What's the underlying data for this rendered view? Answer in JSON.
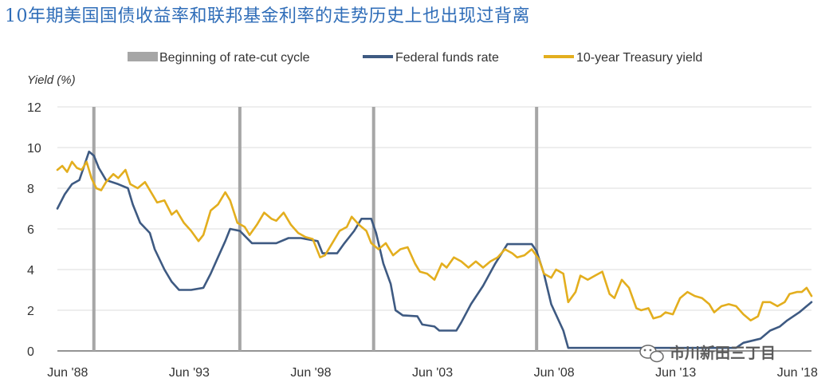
{
  "headline": "10年期美国国债收益率和联邦基金利率的走势历史上也出现过背离",
  "watermark": {
    "text": "市川新田三丁目",
    "icon": "wechat-icon"
  },
  "colors": {
    "fed_funds": "#3e5a82",
    "treasury_10y": "#e3ae1e",
    "cut_cycle": "#a6a6a6",
    "grid": "#dcdcdc"
  },
  "chart_data": {
    "type": "line",
    "title": "",
    "xlabel": "",
    "ylabel": "Yield (%)",
    "ylim": [
      0,
      12
    ],
    "xlim": [
      1988.0,
      2019.0
    ],
    "y_ticks": [
      0,
      2,
      4,
      6,
      8,
      10,
      12
    ],
    "x_ticks": [
      {
        "value": 1988.42,
        "label": "Jun '88"
      },
      {
        "value": 1993.42,
        "label": "Jun '93"
      },
      {
        "value": 1998.42,
        "label": "Jun '98"
      },
      {
        "value": 2003.42,
        "label": "Jun '03"
      },
      {
        "value": 2008.42,
        "label": "Jun '08"
      },
      {
        "value": 2013.42,
        "label": "Jun '13"
      },
      {
        "value": 2018.42,
        "label": "Jun '18"
      }
    ],
    "grid": true,
    "legend": {
      "position": "top",
      "entries": [
        "Beginning of rate-cut cycle",
        "Federal funds rate",
        "10-year Treasury yield"
      ]
    },
    "rate_cut_starts": [
      1989.5,
      1995.5,
      2001.0,
      2007.7
    ],
    "series": [
      {
        "name": "Federal funds rate",
        "points": [
          [
            1988.0,
            7.0
          ],
          [
            1988.3,
            7.7
          ],
          [
            1988.6,
            8.2
          ],
          [
            1988.9,
            8.4
          ],
          [
            1989.1,
            9.1
          ],
          [
            1989.3,
            9.8
          ],
          [
            1989.5,
            9.6
          ],
          [
            1989.7,
            9.0
          ],
          [
            1990.0,
            8.4
          ],
          [
            1990.5,
            8.2
          ],
          [
            1990.9,
            8.0
          ],
          [
            1991.1,
            7.2
          ],
          [
            1991.4,
            6.3
          ],
          [
            1991.8,
            5.8
          ],
          [
            1992.0,
            5.0
          ],
          [
            1992.4,
            4.0
          ],
          [
            1992.7,
            3.4
          ],
          [
            1993.0,
            3.0
          ],
          [
            1993.5,
            3.0
          ],
          [
            1994.0,
            3.1
          ],
          [
            1994.3,
            3.8
          ],
          [
            1994.6,
            4.6
          ],
          [
            1994.9,
            5.4
          ],
          [
            1995.1,
            6.0
          ],
          [
            1995.5,
            5.9
          ],
          [
            1996.0,
            5.3
          ],
          [
            1996.5,
            5.3
          ],
          [
            1997.0,
            5.3
          ],
          [
            1997.5,
            5.55
          ],
          [
            1998.0,
            5.55
          ],
          [
            1998.7,
            5.4
          ],
          [
            1998.9,
            4.8
          ],
          [
            1999.5,
            4.8
          ],
          [
            1999.8,
            5.3
          ],
          [
            2000.2,
            5.9
          ],
          [
            2000.5,
            6.5
          ],
          [
            2000.9,
            6.5
          ],
          [
            2001.1,
            5.8
          ],
          [
            2001.4,
            4.3
          ],
          [
            2001.7,
            3.3
          ],
          [
            2001.9,
            2.0
          ],
          [
            2002.2,
            1.75
          ],
          [
            2002.8,
            1.7
          ],
          [
            2003.0,
            1.3
          ],
          [
            2003.5,
            1.2
          ],
          [
            2003.7,
            1.0
          ],
          [
            2004.4,
            1.0
          ],
          [
            2004.6,
            1.4
          ],
          [
            2005.0,
            2.3
          ],
          [
            2005.5,
            3.2
          ],
          [
            2006.0,
            4.3
          ],
          [
            2006.5,
            5.25
          ],
          [
            2007.5,
            5.25
          ],
          [
            2007.7,
            4.9
          ],
          [
            2008.0,
            3.8
          ],
          [
            2008.3,
            2.3
          ],
          [
            2008.8,
            1.0
          ],
          [
            2009.0,
            0.15
          ],
          [
            2015.9,
            0.15
          ],
          [
            2016.2,
            0.4
          ],
          [
            2016.9,
            0.6
          ],
          [
            2017.3,
            1.0
          ],
          [
            2017.7,
            1.2
          ],
          [
            2018.0,
            1.5
          ],
          [
            2018.5,
            1.9
          ],
          [
            2018.8,
            2.2
          ],
          [
            2019.0,
            2.4
          ]
        ]
      },
      {
        "name": "10-year Treasury yield",
        "points": [
          [
            1988.0,
            8.9
          ],
          [
            1988.2,
            9.1
          ],
          [
            1988.4,
            8.8
          ],
          [
            1988.6,
            9.3
          ],
          [
            1988.8,
            9.0
          ],
          [
            1989.0,
            8.9
          ],
          [
            1989.2,
            9.3
          ],
          [
            1989.4,
            8.5
          ],
          [
            1989.6,
            8.0
          ],
          [
            1989.8,
            7.9
          ],
          [
            1990.0,
            8.3
          ],
          [
            1990.3,
            8.7
          ],
          [
            1990.5,
            8.5
          ],
          [
            1990.8,
            8.9
          ],
          [
            1991.0,
            8.2
          ],
          [
            1991.3,
            8.0
          ],
          [
            1991.6,
            8.3
          ],
          [
            1991.9,
            7.7
          ],
          [
            1992.1,
            7.3
          ],
          [
            1992.4,
            7.4
          ],
          [
            1992.7,
            6.7
          ],
          [
            1992.9,
            6.9
          ],
          [
            1993.2,
            6.3
          ],
          [
            1993.5,
            5.9
          ],
          [
            1993.8,
            5.4
          ],
          [
            1994.0,
            5.7
          ],
          [
            1994.3,
            6.9
          ],
          [
            1994.6,
            7.2
          ],
          [
            1994.9,
            7.8
          ],
          [
            1995.1,
            7.4
          ],
          [
            1995.4,
            6.3
          ],
          [
            1995.7,
            6.1
          ],
          [
            1995.9,
            5.7
          ],
          [
            1996.2,
            6.2
          ],
          [
            1996.5,
            6.8
          ],
          [
            1996.8,
            6.5
          ],
          [
            1997.0,
            6.4
          ],
          [
            1997.3,
            6.8
          ],
          [
            1997.6,
            6.2
          ],
          [
            1997.9,
            5.8
          ],
          [
            1998.2,
            5.6
          ],
          [
            1998.5,
            5.5
          ],
          [
            1998.8,
            4.6
          ],
          [
            1999.0,
            4.7
          ],
          [
            1999.3,
            5.3
          ],
          [
            1999.6,
            5.9
          ],
          [
            1999.9,
            6.1
          ],
          [
            2000.1,
            6.6
          ],
          [
            2000.4,
            6.2
          ],
          [
            2000.7,
            5.9
          ],
          [
            2000.9,
            5.3
          ],
          [
            2001.2,
            5.0
          ],
          [
            2001.5,
            5.3
          ],
          [
            2001.8,
            4.7
          ],
          [
            2002.1,
            5.0
          ],
          [
            2002.4,
            5.1
          ],
          [
            2002.7,
            4.3
          ],
          [
            2002.9,
            3.9
          ],
          [
            2003.2,
            3.8
          ],
          [
            2003.5,
            3.5
          ],
          [
            2003.8,
            4.3
          ],
          [
            2004.0,
            4.1
          ],
          [
            2004.3,
            4.6
          ],
          [
            2004.6,
            4.4
          ],
          [
            2004.9,
            4.1
          ],
          [
            2005.2,
            4.4
          ],
          [
            2005.5,
            4.1
          ],
          [
            2005.8,
            4.4
          ],
          [
            2006.1,
            4.6
          ],
          [
            2006.4,
            5.0
          ],
          [
            2006.7,
            4.8
          ],
          [
            2006.9,
            4.6
          ],
          [
            2007.2,
            4.7
          ],
          [
            2007.5,
            5.0
          ],
          [
            2007.8,
            4.5
          ],
          [
            2008.0,
            3.8
          ],
          [
            2008.3,
            3.6
          ],
          [
            2008.5,
            4.0
          ],
          [
            2008.8,
            3.8
          ],
          [
            2009.0,
            2.4
          ],
          [
            2009.3,
            2.9
          ],
          [
            2009.5,
            3.7
          ],
          [
            2009.8,
            3.5
          ],
          [
            2010.1,
            3.7
          ],
          [
            2010.4,
            3.9
          ],
          [
            2010.7,
            2.8
          ],
          [
            2010.9,
            2.6
          ],
          [
            2011.2,
            3.5
          ],
          [
            2011.5,
            3.1
          ],
          [
            2011.8,
            2.1
          ],
          [
            2012.0,
            2.0
          ],
          [
            2012.3,
            2.1
          ],
          [
            2012.5,
            1.6
          ],
          [
            2012.8,
            1.7
          ],
          [
            2013.0,
            1.9
          ],
          [
            2013.3,
            1.8
          ],
          [
            2013.6,
            2.6
          ],
          [
            2013.9,
            2.9
          ],
          [
            2014.2,
            2.7
          ],
          [
            2014.5,
            2.6
          ],
          [
            2014.8,
            2.3
          ],
          [
            2015.0,
            1.9
          ],
          [
            2015.3,
            2.2
          ],
          [
            2015.6,
            2.3
          ],
          [
            2015.9,
            2.2
          ],
          [
            2016.2,
            1.8
          ],
          [
            2016.5,
            1.5
          ],
          [
            2016.8,
            1.7
          ],
          [
            2017.0,
            2.4
          ],
          [
            2017.3,
            2.4
          ],
          [
            2017.6,
            2.2
          ],
          [
            2017.9,
            2.4
          ],
          [
            2018.1,
            2.8
          ],
          [
            2018.4,
            2.9
          ],
          [
            2018.6,
            2.9
          ],
          [
            2018.8,
            3.1
          ],
          [
            2019.0,
            2.7
          ]
        ]
      }
    ]
  }
}
